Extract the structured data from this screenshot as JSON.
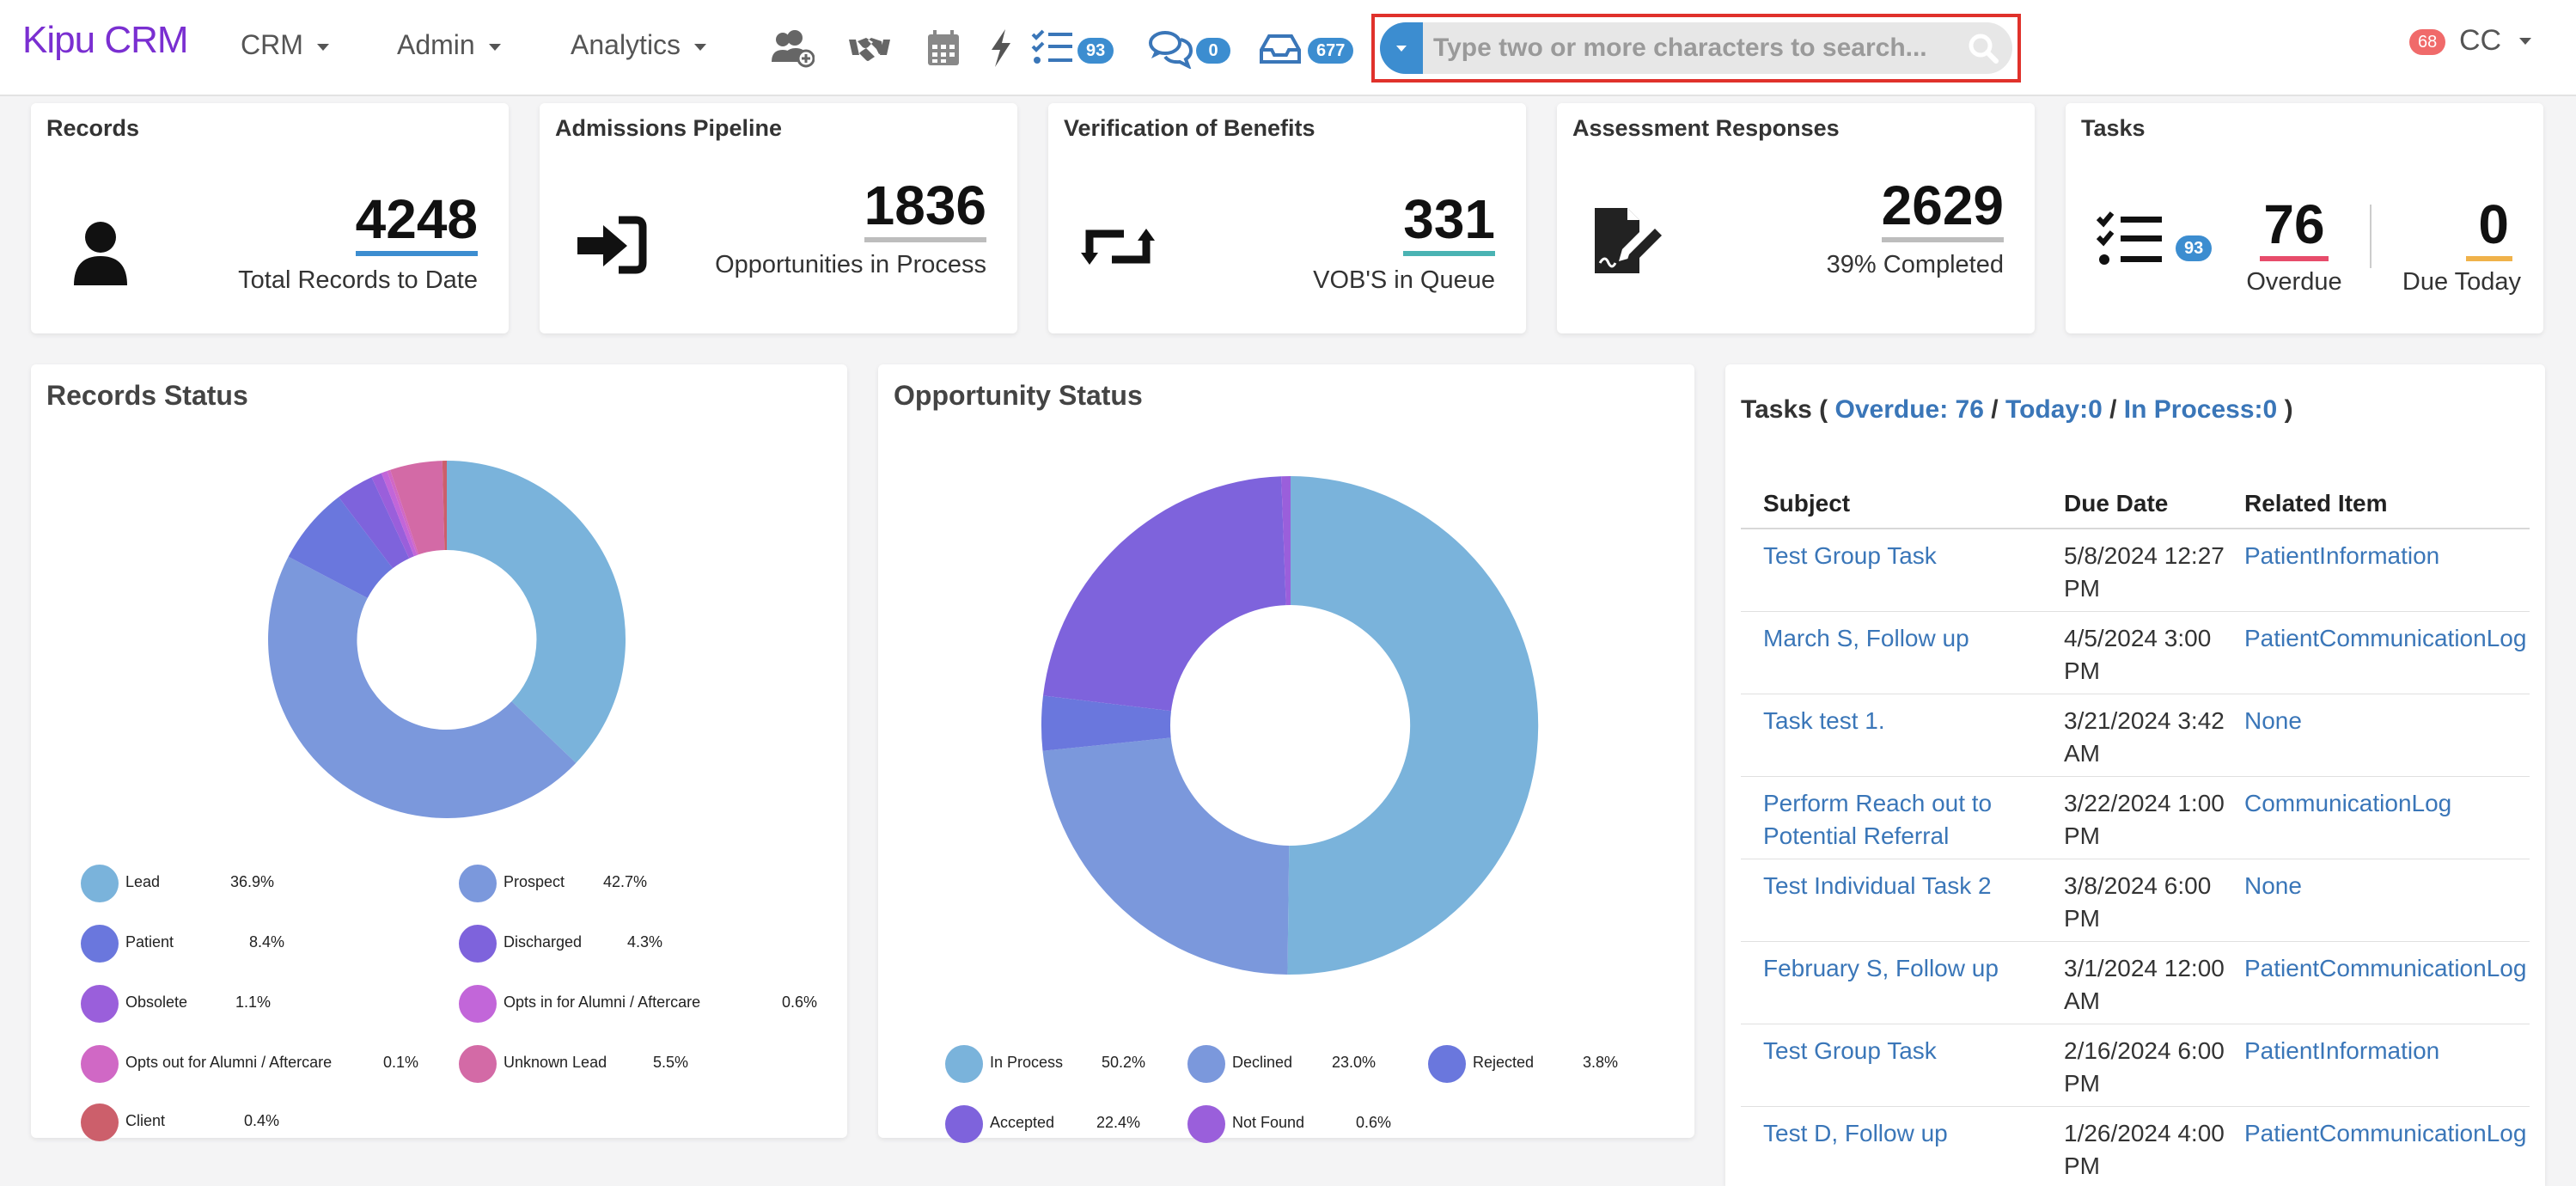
{
  "navbar": {
    "logo_brand": "Kipu",
    "logo_product": "CRM",
    "menus": [
      {
        "label": "CRM"
      },
      {
        "label": "Admin"
      },
      {
        "label": "Analytics"
      }
    ],
    "icons": [
      "add-user-icon",
      "handshake-icon",
      "calendar-icon",
      "bolt-icon",
      "tasks-list-icon",
      "chat-icon",
      "inbox-icon"
    ],
    "tasks_count": "93",
    "messages_count": "0",
    "inbox_count": "677",
    "search_placeholder": "Type two or more characters to search...",
    "user_notifications": "68",
    "user_initials": "CC",
    "accent_color": "#3c8dd0"
  },
  "cards": {
    "records": {
      "title": "Records",
      "value": "4248",
      "sub": "Total Records to Date",
      "bar_color": "#3c8dd0"
    },
    "admissions": {
      "title": "Admissions Pipeline",
      "value": "1836",
      "sub": "Opportunities in Process",
      "bar_color": "#bdbdbd"
    },
    "vob": {
      "title": "Verification of Benefits",
      "value": "331",
      "sub": "VOB'S in Queue",
      "bar_color": "#4ab3b3"
    },
    "assessment": {
      "title": "Assessment Responses",
      "value": "2629",
      "sub": "39% Completed",
      "bar_color": "#bdbdbd"
    },
    "tasks": {
      "title": "Tasks",
      "badge": "93",
      "overdue_value": "76",
      "overdue_label": "Overdue",
      "due_today_value": "0",
      "due_today_label": "Due Today",
      "overdue_color": "#e74c6b",
      "due_today_color": "#f0b24a"
    }
  },
  "records_status": {
    "title": "Records Status",
    "legend": [
      {
        "name": "Lead",
        "pct": "36.9%",
        "color": "#7ab3db"
      },
      {
        "name": "Prospect",
        "pct": "42.7%",
        "color": "#7b98dc"
      },
      {
        "name": "Patient",
        "pct": "8.4%",
        "color": "#6a77dd"
      },
      {
        "name": "Discharged",
        "pct": "4.3%",
        "color": "#7e63dc"
      },
      {
        "name": "Obsolete",
        "pct": "1.1%",
        "color": "#9a5fdb"
      },
      {
        "name": "Opts in for Alumni / Aftercare",
        "pct": "0.6%",
        "color": "#c266d9"
      },
      {
        "name": "Opts out for Alumni / Aftercare",
        "pct": "0.1%",
        "color": "#d068c5"
      },
      {
        "name": "Unknown Lead",
        "pct": "5.5%",
        "color": "#d36aa6"
      },
      {
        "name": "Client",
        "pct": "0.4%",
        "color": "#cc5f6b"
      }
    ]
  },
  "opportunity_status": {
    "title": "Opportunity Status",
    "legend": [
      {
        "name": "In Process",
        "pct": "50.2%",
        "color": "#7ab3db"
      },
      {
        "name": "Declined",
        "pct": "23.0%",
        "color": "#7b98dc"
      },
      {
        "name": "Rejected",
        "pct": "3.8%",
        "color": "#6a77dd"
      },
      {
        "name": "Accepted",
        "pct": "22.4%",
        "color": "#7e63dc"
      },
      {
        "name": "Not Found",
        "pct": "0.6%",
        "color": "#9a5fdb"
      }
    ]
  },
  "tasks_table": {
    "header_prefix": "Tasks (",
    "overdue_link": "Overdue: 76",
    "today_link": "Today:0",
    "in_process_link": "In Process:0",
    "sep": "/",
    "header_suffix": ")",
    "columns": [
      "Subject",
      "Due Date",
      "Related Item"
    ],
    "rows": [
      {
        "subject": "Test Group Task",
        "due": "5/8/2024 12:27 PM",
        "related": "PatientInformation"
      },
      {
        "subject": "March S, Follow up",
        "due": "4/5/2024 3:00 PM",
        "related": "PatientCommunicationLog"
      },
      {
        "subject": "Task test 1.",
        "due": "3/21/2024 3:42 AM",
        "related": "None"
      },
      {
        "subject": "Perform Reach out to Potential Referral",
        "due": "3/22/2024 1:00 PM",
        "related": "CommunicationLog"
      },
      {
        "subject": "Test Individual Task 2",
        "due": "3/8/2024 6:00 PM",
        "related": "None"
      },
      {
        "subject": "February S, Follow up",
        "due": "3/1/2024 12:00 AM",
        "related": "PatientCommunicationLog"
      },
      {
        "subject": "Test Group Task",
        "due": "2/16/2024 6:00 PM",
        "related": "PatientInformation"
      },
      {
        "subject": "Test D, Follow up",
        "due": "1/26/2024 4:00 PM",
        "related": "PatientCommunicationLog"
      }
    ]
  }
}
